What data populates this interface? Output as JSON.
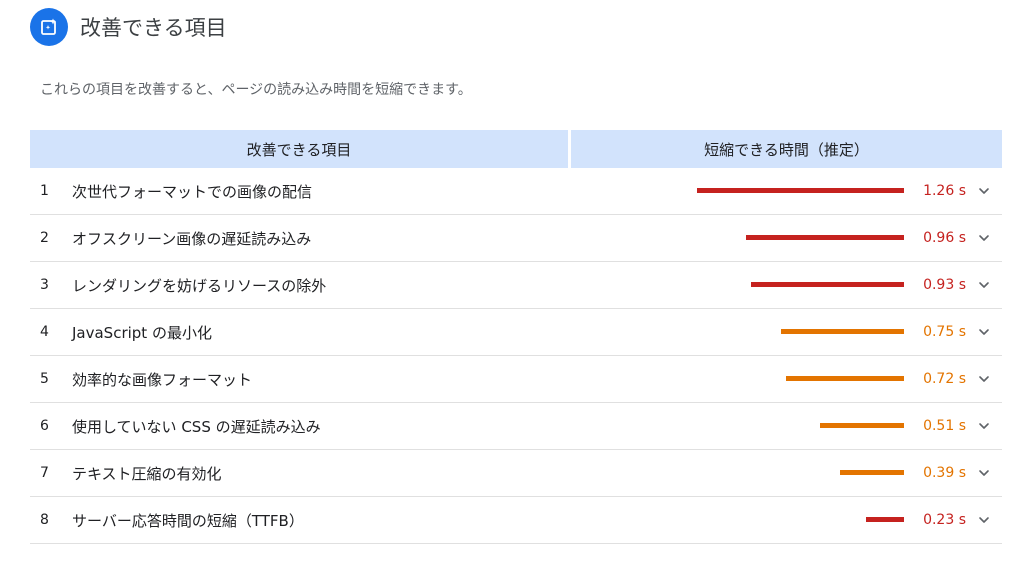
{
  "header": {
    "title": "改善できる項目"
  },
  "description": "これらの項目を改善すると、ページの読み込み時間を短縮できます。",
  "table": {
    "col_item": "改善できる項目",
    "col_time": "短縮できる時間（推定）",
    "max_seconds": 1.26,
    "rows": [
      {
        "num": "1",
        "name": "次世代フォーマットでの画像の配信",
        "value": "1.26 s",
        "seconds": 1.26,
        "color": "#c5221f"
      },
      {
        "num": "2",
        "name": "オフスクリーン画像の遅延読み込み",
        "value": "0.96 s",
        "seconds": 0.96,
        "color": "#c5221f"
      },
      {
        "num": "3",
        "name": "レンダリングを妨げるリソースの除外",
        "value": "0.93 s",
        "seconds": 0.93,
        "color": "#c5221f"
      },
      {
        "num": "4",
        "name": "JavaScript の最小化",
        "value": "0.75 s",
        "seconds": 0.75,
        "color": "#e37400"
      },
      {
        "num": "5",
        "name": "効率的な画像フォーマット",
        "value": "0.72 s",
        "seconds": 0.72,
        "color": "#e37400"
      },
      {
        "num": "6",
        "name": "使用していない CSS の遅延読み込み",
        "value": "0.51 s",
        "seconds": 0.51,
        "color": "#e37400"
      },
      {
        "num": "7",
        "name": "テキスト圧縮の有効化",
        "value": "0.39 s",
        "seconds": 0.39,
        "color": "#e37400"
      },
      {
        "num": "8",
        "name": "サーバー応答時間の短縮（TTFB）",
        "value": "0.23 s",
        "seconds": 0.23,
        "color": "#c5221f"
      }
    ]
  },
  "icons": {
    "header": "lighthouse-opportunity-icon",
    "row_expand": "chevron-down-icon"
  },
  "colors": {
    "accent": "#1a73e8",
    "header_bg": "#d2e3fc",
    "red": "#c5221f",
    "orange": "#e37400"
  }
}
